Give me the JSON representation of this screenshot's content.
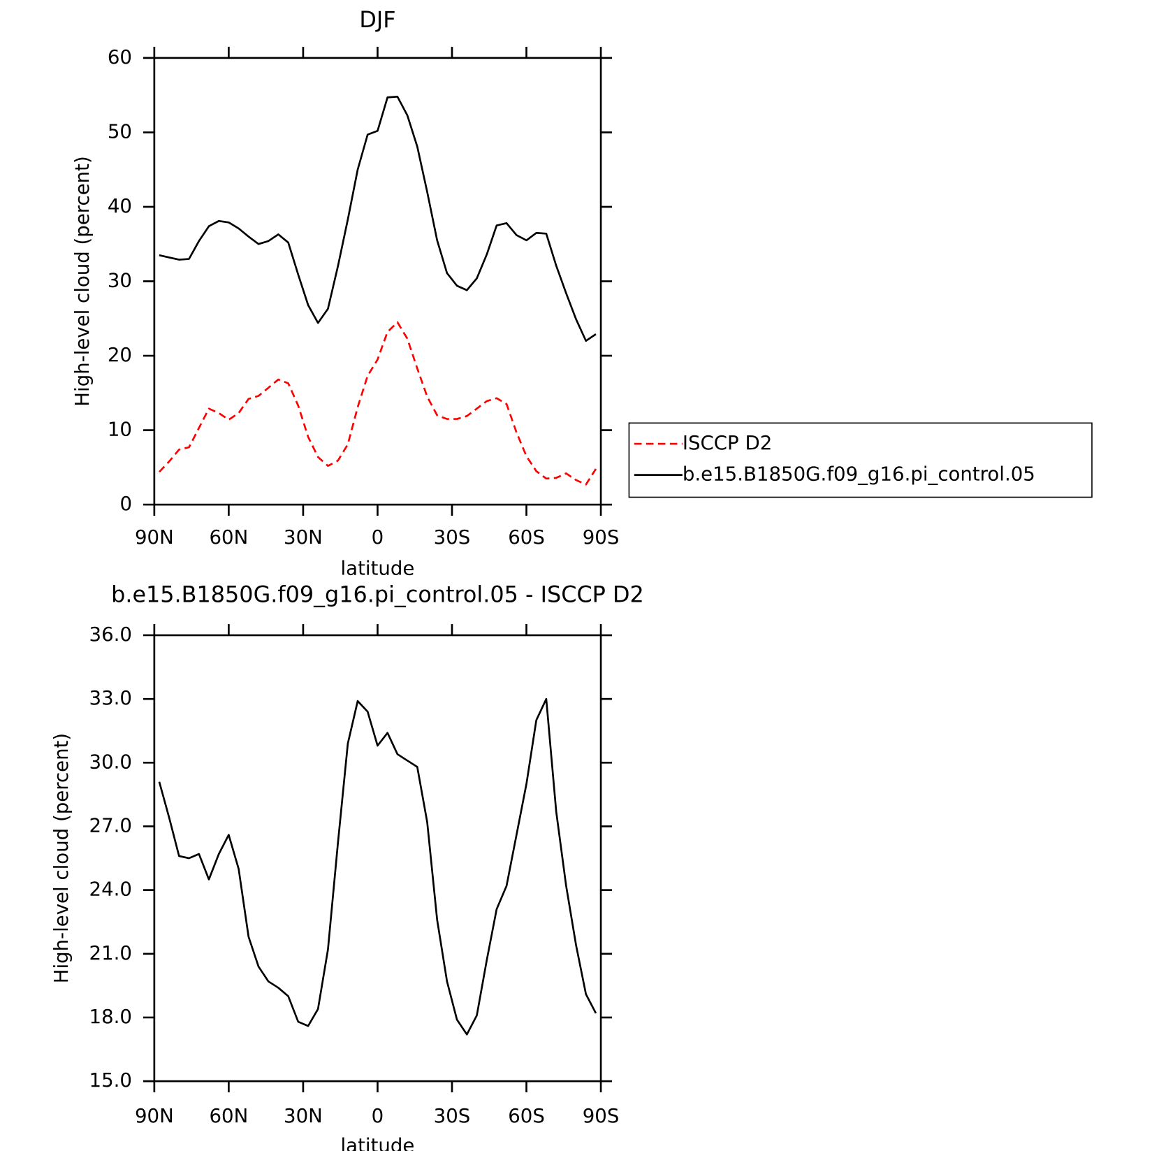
{
  "chart_data": [
    {
      "type": "line",
      "title": "DJF",
      "x_label": "latitude",
      "y_label": "High-level cloud (percent)",
      "x": [
        88,
        84,
        80,
        76,
        72,
        68,
        64,
        60,
        56,
        52,
        48,
        44,
        40,
        36,
        32,
        28,
        24,
        20,
        16,
        12,
        8,
        4,
        0,
        -4,
        -8,
        -12,
        -16,
        -20,
        -24,
        -28,
        -32,
        -36,
        -40,
        -44,
        -48,
        -52,
        -56,
        -60,
        -64,
        -68,
        -72,
        -76,
        -80,
        -84,
        -88
      ],
      "series": [
        {
          "name": "ISCCP D2",
          "color": "#ff0000",
          "linestyle": "dashed",
          "values": [
            4.4,
            5.8,
            7.4,
            7.7,
            10.3,
            12.9,
            12.3,
            11.4,
            12.3,
            14.2,
            14.6,
            15.7,
            16.8,
            16.3,
            13.3,
            9.1,
            6.4,
            5.2,
            5.9,
            8.1,
            13.1,
            17.3,
            19.5,
            23.2,
            24.5,
            22.3,
            18.3,
            14.5,
            12.0,
            11.5,
            11.5,
            11.9,
            12.9,
            13.9,
            14.3,
            13.5,
            9.7,
            6.5,
            4.5,
            3.5,
            3.6,
            4.2,
            3.3,
            2.7,
            4.8
          ]
        },
        {
          "name": "b.e15.B1850G.f09_g16.pi_control.05",
          "color": "#000000",
          "linestyle": "solid",
          "values": [
            33.5,
            33.2,
            32.9,
            33.0,
            35.4,
            37.4,
            38.1,
            37.9,
            37.1,
            36.0,
            35.0,
            35.4,
            36.3,
            35.2,
            30.9,
            26.8,
            24.4,
            26.3,
            32.0,
            38.3,
            45.0,
            49.7,
            50.2,
            54.7,
            54.8,
            52.3,
            48.1,
            42.0,
            35.5,
            31.1,
            29.4,
            28.8,
            30.4,
            33.6,
            37.5,
            37.8,
            36.2,
            35.5,
            36.5,
            36.4,
            32.1,
            28.4,
            24.9,
            22.0,
            22.9
          ]
        }
      ],
      "xlim": [
        90,
        -90
      ],
      "xticks": [
        {
          "value": 90,
          "label": "90N"
        },
        {
          "value": 60,
          "label": "60N"
        },
        {
          "value": 30,
          "label": "30N"
        },
        0,
        {
          "value": -30,
          "label": "30S"
        },
        {
          "value": -60,
          "label": "60S"
        },
        {
          "value": -90,
          "label": "90S"
        }
      ],
      "ylim": [
        0,
        60
      ],
      "yticks": [
        0,
        10,
        20,
        30,
        40,
        50,
        60
      ],
      "legend": "outside-right"
    },
    {
      "type": "line",
      "title": "b.e15.B1850G.f09_g16.pi_control.05 - ISCCP D2",
      "x_label": "latitude",
      "y_label": "High-level cloud (percent)",
      "x": [
        88,
        84,
        80,
        76,
        72,
        68,
        64,
        60,
        56,
        52,
        48,
        44,
        40,
        36,
        32,
        28,
        24,
        20,
        16,
        12,
        8,
        4,
        0,
        -4,
        -8,
        -12,
        -16,
        -20,
        -24,
        -28,
        -32,
        -36,
        -40,
        -44,
        -48,
        -52,
        -56,
        -60,
        -64,
        -68,
        -72,
        -76,
        -80,
        -84,
        -88
      ],
      "values": [
        29.1,
        27.4,
        25.6,
        25.5,
        25.7,
        24.5,
        25.7,
        26.6,
        25.0,
        21.8,
        20.4,
        19.7,
        19.4,
        19.0,
        17.8,
        17.6,
        18.4,
        21.2,
        26.2,
        30.9,
        32.9,
        32.4,
        30.8,
        31.4,
        30.4,
        30.1,
        29.8,
        27.2,
        22.6,
        19.7,
        17.9,
        17.2,
        18.1,
        20.7,
        23.1,
        24.2,
        26.6,
        29.0,
        32.0,
        33.0,
        27.7,
        24.2,
        21.4,
        19.1,
        18.2
      ],
      "color": "#000000",
      "xlim": [
        90,
        -90
      ],
      "xticks": [
        {
          "value": 90,
          "label": "90N"
        },
        {
          "value": 60,
          "label": "60N"
        },
        {
          "value": 30,
          "label": "30N"
        },
        0,
        {
          "value": -30,
          "label": "30S"
        },
        {
          "value": -60,
          "label": "60S"
        },
        {
          "value": -90,
          "label": "90S"
        }
      ],
      "ylim": [
        15,
        36
      ],
      "yticks": [
        {
          "value": 15,
          "label": "15.0"
        },
        {
          "value": 18,
          "label": "18.0"
        },
        {
          "value": 21,
          "label": "21.0"
        },
        {
          "value": 24,
          "label": "24.0"
        },
        {
          "value": 27,
          "label": "27.0"
        },
        {
          "value": 30,
          "label": "30.0"
        },
        {
          "value": 33,
          "label": "33.0"
        },
        {
          "value": 36,
          "label": "36.0"
        }
      ]
    }
  ]
}
